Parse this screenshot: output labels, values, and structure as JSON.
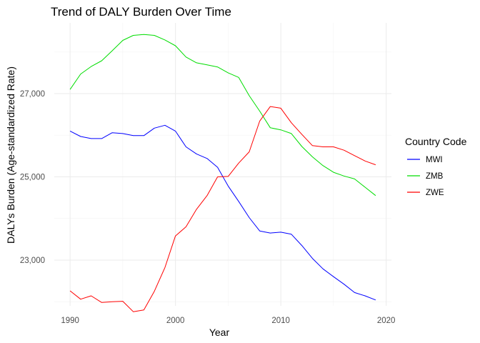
{
  "chart_data": {
    "type": "line",
    "title": "Trend of DALY Burden Over Time",
    "xlabel": "Year",
    "ylabel": "DALYs Burden (Age-standardized Rate)",
    "xlim": [
      1988.5,
      2020.5
    ],
    "ylim": [
      21900,
      28700
    ],
    "x_ticks": [
      1990,
      2000,
      2010,
      2020
    ],
    "x_tick_labels": [
      "1990",
      "2000",
      "2010",
      "2020"
    ],
    "y_ticks": [
      23000,
      25000,
      27000
    ],
    "y_tick_labels": [
      "23,000",
      "25,000",
      "27,000"
    ],
    "grid": true,
    "legend": {
      "title": "Country Code",
      "position": "right"
    },
    "x": [
      1990,
      1991,
      1992,
      1993,
      1994,
      1995,
      1996,
      1997,
      1998,
      1999,
      2000,
      2001,
      2002,
      2003,
      2004,
      2005,
      2006,
      2007,
      2008,
      2009,
      2010,
      2011,
      2012,
      2013,
      2014,
      2015,
      2016,
      2017,
      2018,
      2019
    ],
    "series": [
      {
        "name": "MWI",
        "color": "#0000ff",
        "values": [
          26100,
          25970,
          25920,
          25920,
          26060,
          26040,
          25990,
          25990,
          26170,
          26240,
          26100,
          25720,
          25550,
          25440,
          25230,
          24780,
          24410,
          24020,
          23700,
          23650,
          23670,
          23620,
          23350,
          23040,
          22790,
          22600,
          22420,
          22220,
          22140,
          22040
        ]
      },
      {
        "name": "ZMB",
        "color": "#00dd00",
        "values": [
          27100,
          27470,
          27650,
          27790,
          28030,
          28280,
          28400,
          28420,
          28400,
          28290,
          28150,
          27880,
          27740,
          27690,
          27640,
          27500,
          27390,
          26950,
          26580,
          26180,
          26130,
          26040,
          25730,
          25480,
          25270,
          25110,
          25020,
          24950,
          24750,
          24550
        ]
      },
      {
        "name": "ZWE",
        "color": "#ff0000",
        "values": [
          22260,
          22060,
          22140,
          21980,
          22000,
          22010,
          21760,
          21800,
          22250,
          22820,
          23580,
          23800,
          24220,
          24550,
          25000,
          25010,
          25330,
          25600,
          26340,
          26690,
          26650,
          26300,
          26020,
          25750,
          25720,
          25720,
          25640,
          25510,
          25380,
          25290
        ]
      }
    ]
  }
}
